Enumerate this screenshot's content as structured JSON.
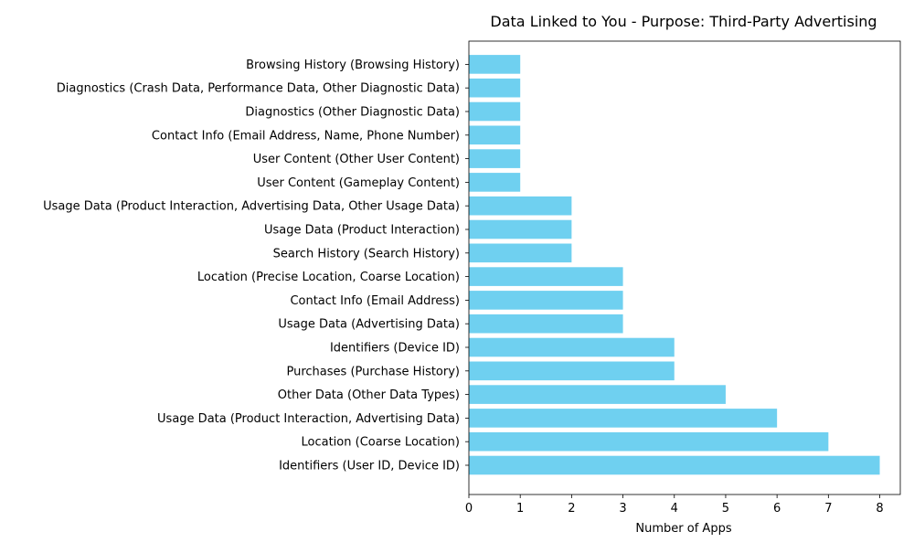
{
  "chart_data": {
    "type": "bar",
    "orientation": "horizontal",
    "title": "Data Linked to You - Purpose: Third-Party Advertising",
    "xlabel": "Number of Apps",
    "ylabel": "",
    "xlim": [
      0,
      8.4
    ],
    "xticks": [
      0,
      1,
      2,
      3,
      4,
      5,
      6,
      7,
      8
    ],
    "grid": false,
    "bar_color": "#6fd0f0",
    "categories": [
      "Identifiers (User ID, Device ID)",
      "Location (Coarse Location)",
      "Usage Data (Product Interaction, Advertising Data)",
      "Other Data (Other Data Types)",
      "Purchases (Purchase History)",
      "Identifiers (Device ID)",
      "Usage Data (Advertising Data)",
      "Contact Info (Email Address)",
      "Location (Precise Location, Coarse Location)",
      "Search History (Search History)",
      "Usage Data (Product Interaction)",
      "Usage Data (Product Interaction, Advertising Data, Other Usage Data)",
      "User Content (Gameplay Content)",
      "User Content (Other User Content)",
      "Contact Info (Email Address, Name, Phone Number)",
      "Diagnostics (Other Diagnostic Data)",
      "Diagnostics (Crash Data, Performance Data, Other Diagnostic Data)",
      "Browsing History (Browsing History)"
    ],
    "values": [
      8,
      7,
      6,
      5,
      4,
      4,
      3,
      3,
      3,
      2,
      2,
      2,
      1,
      1,
      1,
      1,
      1,
      1
    ]
  }
}
